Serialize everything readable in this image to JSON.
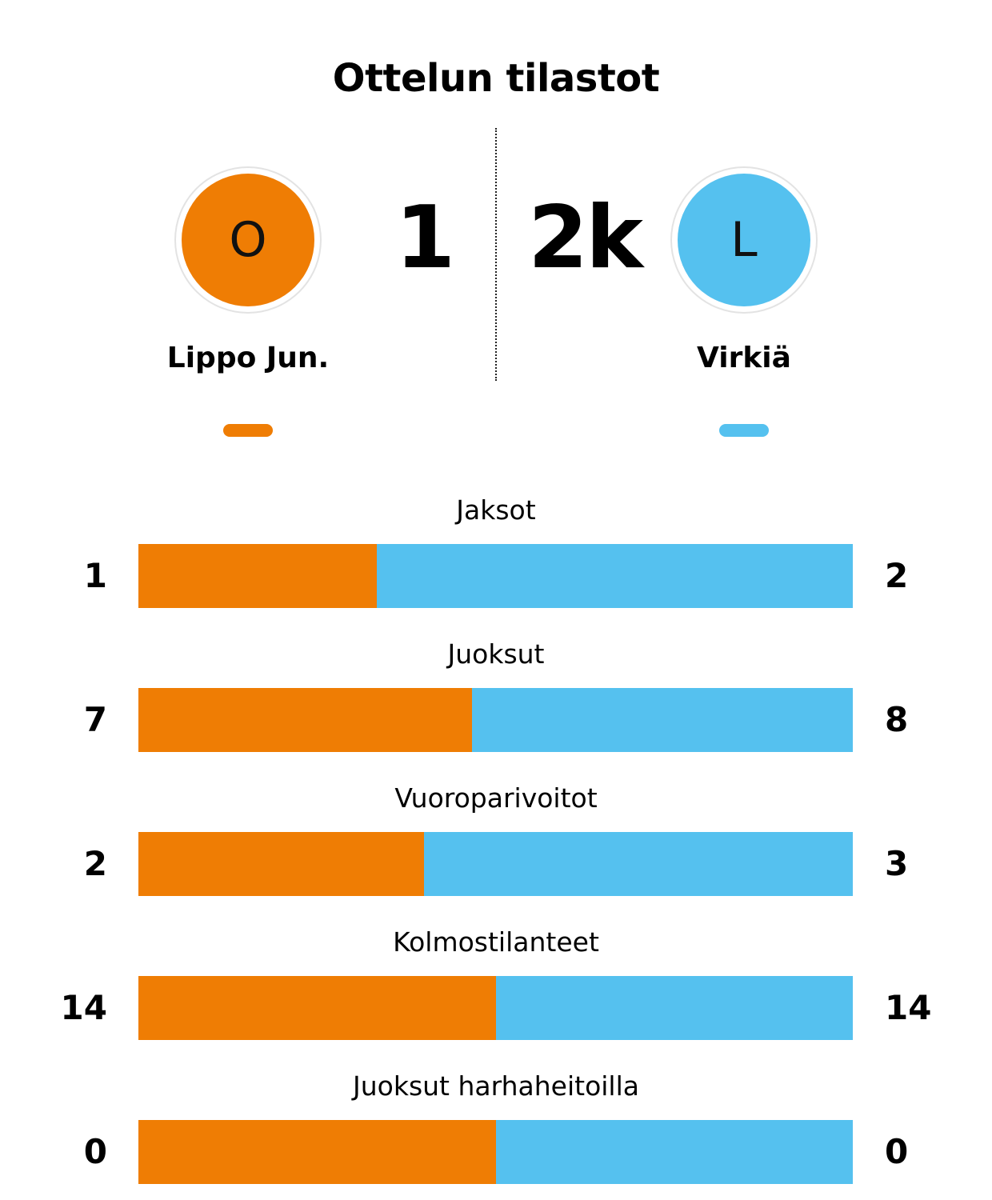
{
  "title": "Ottelun tilastot",
  "colors": {
    "home": "#ef7d04",
    "away": "#55c1ef"
  },
  "home": {
    "name": "Lippo Jun.",
    "logo_letter": "O",
    "score": "1"
  },
  "away": {
    "name": "Virkiä",
    "logo_letter": "L",
    "score": "2k"
  },
  "chart_data": {
    "type": "bar",
    "orientation": "horizontal-stacked-100",
    "series": [
      {
        "name": "Lippo Jun.",
        "color": "#ef7d04"
      },
      {
        "name": "Virkiä",
        "color": "#55c1ef"
      }
    ],
    "rows": [
      {
        "label": "Jaksot",
        "home": 1,
        "away": 2
      },
      {
        "label": "Juoksut",
        "home": 7,
        "away": 8
      },
      {
        "label": "Vuoroparivoitot",
        "home": 2,
        "away": 3
      },
      {
        "label": "Kolmostilanteet",
        "home": 14,
        "away": 14
      },
      {
        "label": "Juoksut harhaheitoilla",
        "home": 0,
        "away": 0
      }
    ]
  }
}
